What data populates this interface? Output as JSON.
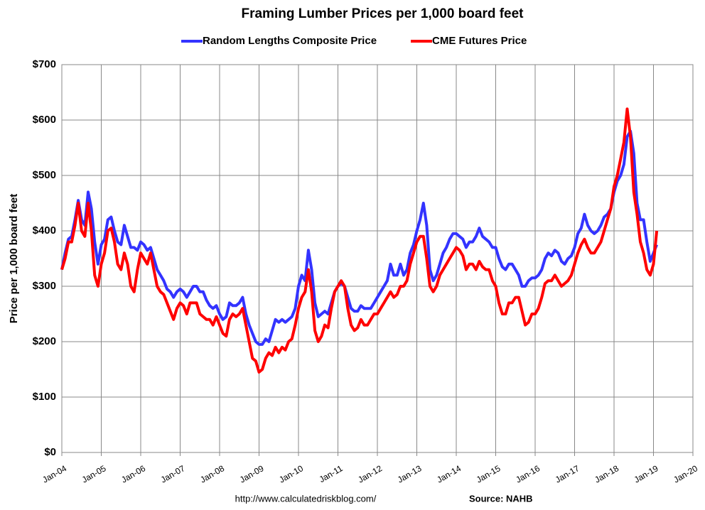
{
  "chart_data": {
    "type": "line",
    "title": "Framing Lumber Prices per 1,000 board feet",
    "y_label": "Price per 1,000 board feet",
    "source_url": "http://www.calculatedriskblog.com/",
    "source": "Source: NAHB",
    "grid": true,
    "legend": "top",
    "ylim": [
      0,
      700
    ],
    "yticks": [
      {
        "value": 0,
        "label": "$0"
      },
      {
        "value": 100,
        "label": "$100"
      },
      {
        "value": 200,
        "label": "$200"
      },
      {
        "value": 300,
        "label": "$300"
      },
      {
        "value": 400,
        "label": "$400"
      },
      {
        "value": 500,
        "label": "$500"
      },
      {
        "value": 600,
        "label": "$600"
      },
      {
        "value": 700,
        "label": "$700"
      }
    ],
    "xlim": [
      "2004-01",
      "2020-01"
    ],
    "xticks": [
      {
        "value": "2004-01",
        "label": "Jan-04"
      },
      {
        "value": "2005-01",
        "label": "Jan-05"
      },
      {
        "value": "2006-01",
        "label": "Jan-06"
      },
      {
        "value": "2007-01",
        "label": "Jan-07"
      },
      {
        "value": "2008-01",
        "label": "Jan-08"
      },
      {
        "value": "2009-01",
        "label": "Jan-09"
      },
      {
        "value": "2010-01",
        "label": "Jan-10"
      },
      {
        "value": "2011-01",
        "label": "Jan-11"
      },
      {
        "value": "2012-01",
        "label": "Jan-12"
      },
      {
        "value": "2013-01",
        "label": "Jan-13"
      },
      {
        "value": "2014-01",
        "label": "Jan-14"
      },
      {
        "value": "2015-01",
        "label": "Jan-15"
      },
      {
        "value": "2016-01",
        "label": "Jan-16"
      },
      {
        "value": "2017-01",
        "label": "Jan-17"
      },
      {
        "value": "2018-01",
        "label": "Jan-18"
      },
      {
        "value": "2019-01",
        "label": "Jan-19"
      },
      {
        "value": "2020-01",
        "label": "Jan-20"
      }
    ],
    "x": [
      "2004-01",
      "2004-02",
      "2004-03",
      "2004-04",
      "2004-05",
      "2004-06",
      "2004-07",
      "2004-08",
      "2004-09",
      "2004-10",
      "2004-11",
      "2004-12",
      "2005-01",
      "2005-02",
      "2005-03",
      "2005-04",
      "2005-05",
      "2005-06",
      "2005-07",
      "2005-08",
      "2005-09",
      "2005-10",
      "2005-11",
      "2005-12",
      "2006-01",
      "2006-02",
      "2006-03",
      "2006-04",
      "2006-05",
      "2006-06",
      "2006-07",
      "2006-08",
      "2006-09",
      "2006-10",
      "2006-11",
      "2006-12",
      "2007-01",
      "2007-02",
      "2007-03",
      "2007-04",
      "2007-05",
      "2007-06",
      "2007-07",
      "2007-08",
      "2007-09",
      "2007-10",
      "2007-11",
      "2007-12",
      "2008-01",
      "2008-02",
      "2008-03",
      "2008-04",
      "2008-05",
      "2008-06",
      "2008-07",
      "2008-08",
      "2008-09",
      "2008-10",
      "2008-11",
      "2008-12",
      "2009-01",
      "2009-02",
      "2009-03",
      "2009-04",
      "2009-05",
      "2009-06",
      "2009-07",
      "2009-08",
      "2009-09",
      "2009-10",
      "2009-11",
      "2009-12",
      "2010-01",
      "2010-02",
      "2010-03",
      "2010-04",
      "2010-05",
      "2010-06",
      "2010-07",
      "2010-08",
      "2010-09",
      "2010-10",
      "2010-11",
      "2010-12",
      "2011-01",
      "2011-02",
      "2011-03",
      "2011-04",
      "2011-05",
      "2011-06",
      "2011-07",
      "2011-08",
      "2011-09",
      "2011-10",
      "2011-11",
      "2011-12",
      "2012-01",
      "2012-02",
      "2012-03",
      "2012-04",
      "2012-05",
      "2012-06",
      "2012-07",
      "2012-08",
      "2012-09",
      "2012-10",
      "2012-11",
      "2012-12",
      "2013-01",
      "2013-02",
      "2013-03",
      "2013-04",
      "2013-05",
      "2013-06",
      "2013-07",
      "2013-08",
      "2013-09",
      "2013-10",
      "2013-11",
      "2013-12",
      "2014-01",
      "2014-02",
      "2014-03",
      "2014-04",
      "2014-05",
      "2014-06",
      "2014-07",
      "2014-08",
      "2014-09",
      "2014-10",
      "2014-11",
      "2014-12",
      "2015-01",
      "2015-02",
      "2015-03",
      "2015-04",
      "2015-05",
      "2015-06",
      "2015-07",
      "2015-08",
      "2015-09",
      "2015-10",
      "2015-11",
      "2015-12",
      "2016-01",
      "2016-02",
      "2016-03",
      "2016-04",
      "2016-05",
      "2016-06",
      "2016-07",
      "2016-08",
      "2016-09",
      "2016-10",
      "2016-11",
      "2016-12",
      "2017-01",
      "2017-02",
      "2017-03",
      "2017-04",
      "2017-05",
      "2017-06",
      "2017-07",
      "2017-08",
      "2017-09",
      "2017-10",
      "2017-11",
      "2017-12",
      "2018-01",
      "2018-02",
      "2018-03",
      "2018-04",
      "2018-05",
      "2018-06",
      "2018-07",
      "2018-08",
      "2018-09",
      "2018-10",
      "2018-11",
      "2018-12",
      "2019-01",
      "2019-02"
    ],
    "series": [
      {
        "name": "Random Lengths Composite Price",
        "color": "#3333ff",
        "values": [
          330,
          360,
          385,
          390,
          420,
          455,
          420,
          410,
          470,
          440,
          380,
          340,
          375,
          385,
          420,
          425,
          400,
          380,
          375,
          410,
          390,
          370,
          370,
          365,
          380,
          375,
          365,
          370,
          350,
          330,
          320,
          310,
          295,
          290,
          280,
          290,
          295,
          290,
          280,
          290,
          300,
          300,
          290,
          290,
          275,
          265,
          260,
          265,
          250,
          240,
          245,
          270,
          265,
          265,
          270,
          280,
          250,
          230,
          215,
          200,
          195,
          195,
          205,
          200,
          220,
          240,
          235,
          240,
          235,
          240,
          245,
          260,
          300,
          320,
          310,
          365,
          330,
          270,
          245,
          250,
          255,
          250,
          270,
          290,
          300,
          305,
          300,
          280,
          260,
          255,
          255,
          265,
          260,
          260,
          260,
          270,
          280,
          290,
          300,
          310,
          340,
          320,
          320,
          340,
          320,
          330,
          360,
          375,
          400,
          420,
          450,
          410,
          330,
          310,
          320,
          340,
          360,
          370,
          385,
          395,
          395,
          390,
          385,
          370,
          380,
          380,
          390,
          405,
          390,
          385,
          380,
          370,
          370,
          350,
          335,
          330,
          340,
          340,
          330,
          320,
          300,
          300,
          310,
          315,
          315,
          320,
          330,
          350,
          360,
          355,
          365,
          360,
          345,
          340,
          350,
          355,
          370,
          395,
          405,
          430,
          410,
          400,
          395,
          400,
          410,
          425,
          430,
          440,
          470,
          490,
          500,
          520,
          570,
          580,
          540,
          450,
          420,
          420,
          380,
          345,
          360,
          375
        ]
      },
      {
        "name": "CME Futures Price",
        "color": "#ff0000",
        "values": [
          330,
          350,
          380,
          380,
          410,
          450,
          400,
          390,
          450,
          400,
          320,
          300,
          340,
          360,
          400,
          405,
          380,
          340,
          330,
          360,
          340,
          300,
          290,
          330,
          360,
          350,
          340,
          360,
          330,
          300,
          290,
          285,
          270,
          255,
          240,
          260,
          270,
          265,
          250,
          270,
          270,
          270,
          250,
          245,
          240,
          240,
          230,
          245,
          230,
          215,
          210,
          240,
          250,
          245,
          250,
          260,
          230,
          200,
          170,
          165,
          145,
          150,
          170,
          180,
          175,
          190,
          180,
          190,
          185,
          200,
          205,
          230,
          260,
          280,
          290,
          330,
          290,
          220,
          200,
          210,
          230,
          225,
          260,
          290,
          300,
          310,
          300,
          260,
          230,
          220,
          225,
          240,
          230,
          230,
          240,
          250,
          250,
          260,
          270,
          280,
          290,
          280,
          285,
          300,
          300,
          310,
          340,
          360,
          380,
          390,
          390,
          350,
          300,
          290,
          300,
          320,
          330,
          340,
          350,
          360,
          370,
          365,
          355,
          330,
          340,
          340,
          330,
          345,
          335,
          330,
          330,
          310,
          300,
          270,
          250,
          250,
          270,
          270,
          280,
          280,
          255,
          230,
          235,
          250,
          250,
          260,
          280,
          305,
          310,
          310,
          320,
          310,
          300,
          305,
          310,
          320,
          340,
          360,
          375,
          385,
          370,
          360,
          360,
          370,
          380,
          400,
          420,
          440,
          480,
          500,
          530,
          560,
          620,
          570,
          470,
          430,
          380,
          360,
          330,
          320,
          340,
          400
        ]
      }
    ]
  }
}
